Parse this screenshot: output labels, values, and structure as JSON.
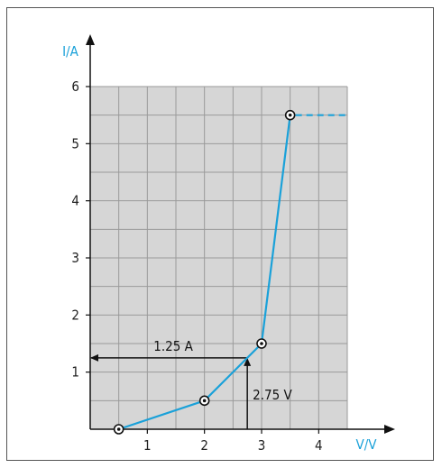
{
  "colors": {
    "series": "#1aa1d9",
    "axis_title": "#1aa1d9",
    "grid_bg": "#d6d6d6",
    "grid_line": "#9a9a9a",
    "axis": "#111111"
  },
  "chart_data": {
    "type": "line",
    "xlabel": "V/V",
    "ylabel": "I/A",
    "xlim": [
      0,
      4.5
    ],
    "ylim": [
      0,
      6
    ],
    "x_ticks": [
      1,
      2,
      3,
      4
    ],
    "y_ticks": [
      1,
      2,
      3,
      4,
      5,
      6
    ],
    "grid": true,
    "series": [
      {
        "points": [
          {
            "x": 0.5,
            "y": 0
          },
          {
            "x": 2.0,
            "y": 0.5
          },
          {
            "x": 3.0,
            "y": 1.5
          },
          {
            "x": 3.5,
            "y": 5.5
          }
        ],
        "extension": {
          "from": {
            "x": 3.5,
            "y": 5.5
          },
          "to": {
            "x": 4.5,
            "y": 5.5
          },
          "style": "dashed"
        }
      }
    ],
    "annotations": [
      {
        "text": "1.25 A",
        "x": 2.75,
        "y": 1.25,
        "direction": "to-y-axis"
      },
      {
        "text": "2.75 V",
        "x": 2.75,
        "y": 1.25,
        "direction": "from-x-axis"
      }
    ]
  }
}
